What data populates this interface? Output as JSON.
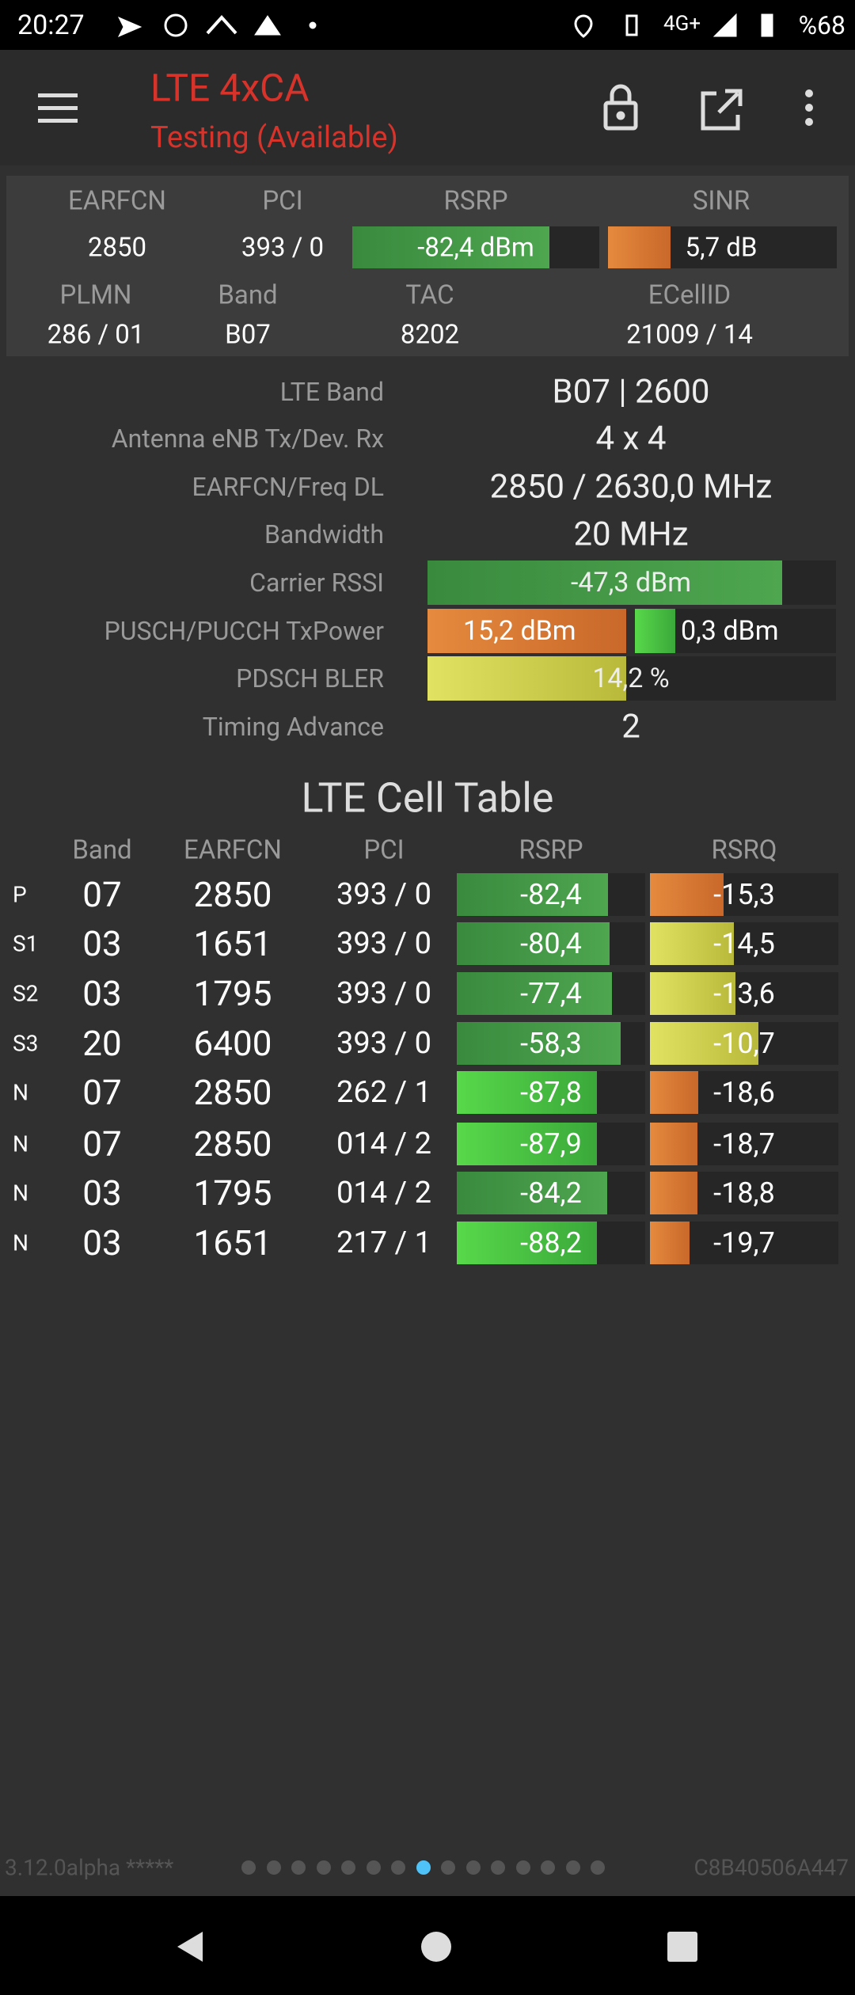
{
  "status": {
    "time": "20:27",
    "network": "4G+",
    "battery": "%68"
  },
  "app_bar": {
    "title": "LTE 4xCA",
    "subtitle": "Testing (Available)"
  },
  "summary": {
    "headers": [
      "EARFCN",
      "PCI",
      "RSRP",
      "SINR"
    ],
    "values": [
      "2850",
      "393 / 0",
      "-82,4 dBm",
      "5,7 dB"
    ],
    "headers2": [
      "PLMN",
      "Band",
      "TAC",
      "ECellID"
    ],
    "values2": [
      "286 / 01",
      "B07",
      "8202",
      "21009 / 14"
    ]
  },
  "details": {
    "rows": [
      {
        "label": "LTE Band",
        "values": [
          "B07 | 2600"
        ]
      },
      {
        "label": "Antenna eNB Tx/Dev. Rx",
        "values": [
          "4 x 4"
        ]
      },
      {
        "label": "EARFCN/Freq DL",
        "values": [
          "2850 / 2630,0 MHz"
        ]
      },
      {
        "label": "Bandwidth",
        "values": [
          "20 MHz"
        ]
      },
      {
        "label": "Carrier RSSI",
        "values": [
          "-47,3 dBm"
        ]
      },
      {
        "label": "PUSCH/PUCCH TxPower",
        "values": [
          "15,2 dBm",
          "0,3 dBm"
        ]
      },
      {
        "label": "PDSCH BLER",
        "values": [
          "14,2 %"
        ]
      },
      {
        "label": "Timing Advance",
        "values": [
          "2"
        ]
      }
    ]
  },
  "cell_table": {
    "title": "LTE Cell Table",
    "headers": [
      "Band",
      "EARFCN",
      "PCI",
      "RSRP",
      "RSRQ"
    ],
    "rows": [
      [
        "P",
        "07",
        "2850",
        "393 / 0",
        "-82,4",
        "-15,3"
      ],
      [
        "S1",
        "03",
        "1651",
        "393 / 0",
        "-80,4",
        "-14,5"
      ],
      [
        "S2",
        "03",
        "1795",
        "393 / 0",
        "-77,4",
        "-13,6"
      ],
      [
        "S3",
        "20",
        "6400",
        "393 / 0",
        "-58,3",
        "-10,7"
      ],
      [
        "N",
        "07",
        "2850",
        "262 / 1",
        "-87,8",
        "-18,6"
      ],
      [
        "N",
        "07",
        "2850",
        "014 / 2",
        "-87,9",
        "-18,7"
      ],
      [
        "N",
        "03",
        "1795",
        "014 / 2",
        "-84,2",
        "-18,8"
      ],
      [
        "N",
        "03",
        "1651",
        "217 / 1",
        "-88,2",
        "-19,7"
      ]
    ]
  },
  "footer": {
    "version": "3.12.0alpha *****",
    "device_id": "C8B40506A447"
  }
}
